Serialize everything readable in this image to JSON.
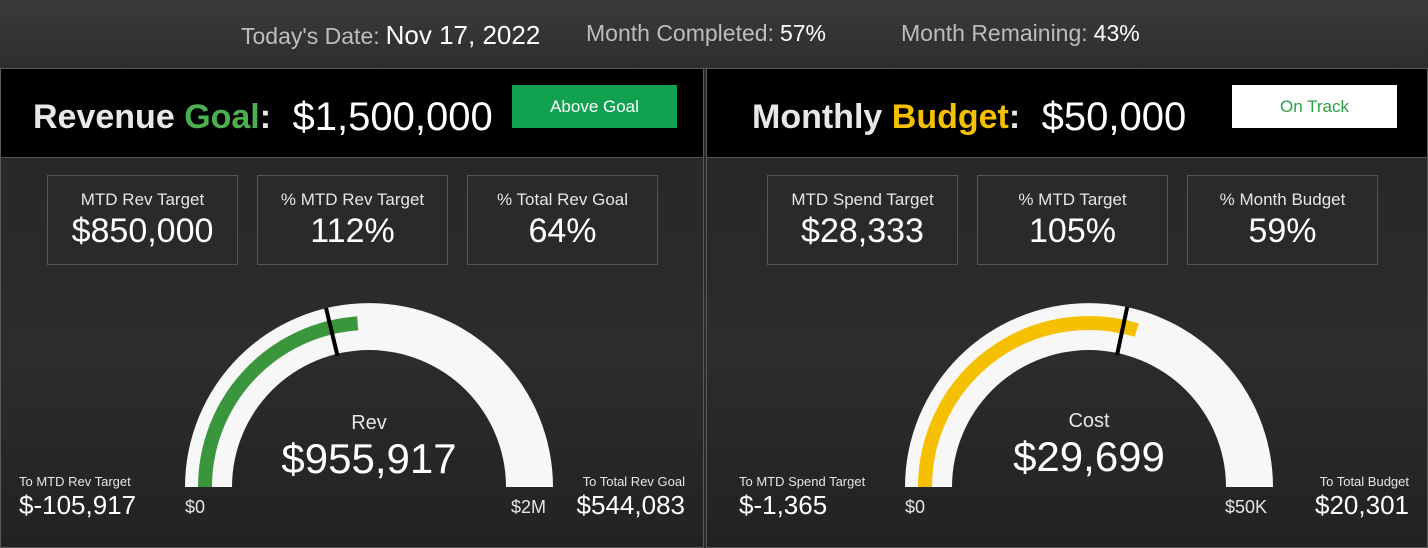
{
  "header": {
    "date_label": "Today's Date:",
    "date_value": "Nov 17, 2022",
    "completed_label": "Month Completed:",
    "completed_value": "57%",
    "remaining_label": "Month Remaining:",
    "remaining_value": "43%"
  },
  "revenue": {
    "title_word1": "Revenue",
    "title_word2": "Goal",
    "title_colon": ":",
    "amount": "$1,500,000",
    "status": "Above Goal",
    "kpis": [
      {
        "label": "MTD Rev Target",
        "value": "$850,000"
      },
      {
        "label": "% MTD Rev Target",
        "value": "112%"
      },
      {
        "label": "% Total Rev Goal",
        "value": "64%"
      }
    ],
    "gauge": {
      "label": "Rev",
      "value_text": "$955,917",
      "min_label": "$0",
      "max_label": "$2M",
      "value": 955917,
      "min": 0,
      "max": 2000000,
      "target": 850000,
      "color": "#3a963d"
    },
    "left_small": "To MTD Rev Target",
    "left_value": "$-105,917",
    "right_small": "To Total Rev Goal",
    "right_value": "$544,083"
  },
  "budget": {
    "title_word1": "Monthly",
    "title_word2": "Budget",
    "title_colon": ":",
    "amount": "$50,000",
    "status": "On Track",
    "kpis": [
      {
        "label": "MTD Spend Target",
        "value": "$28,333"
      },
      {
        "label": "% MTD Target",
        "value": "105%"
      },
      {
        "label": "% Month Budget",
        "value": "59%"
      }
    ],
    "gauge": {
      "label": "Cost",
      "value_text": "$29,699",
      "min_label": "$0",
      "max_label": "$50K",
      "value": 29699,
      "min": 0,
      "max": 50000,
      "target": 28333,
      "color": "#f5c000"
    },
    "left_small": "To MTD Spend Target",
    "left_value": "$-1,365",
    "right_small": "To Total Budget",
    "right_value": "$20,301"
  },
  "colors": {
    "green_accent": "#4caf50",
    "yellow_accent": "#f5c000",
    "status_green": "#12a150"
  }
}
